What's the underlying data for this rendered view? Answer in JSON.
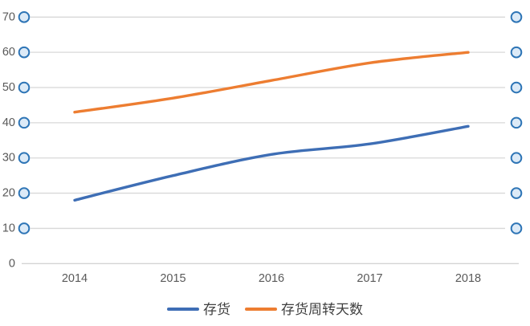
{
  "chart_data": {
    "type": "line",
    "title": "",
    "xlabel": "",
    "ylabel": "",
    "categories": [
      "2014",
      "2015",
      "2016",
      "2017",
      "2018"
    ],
    "series": [
      {
        "name": "存货",
        "color": "#3E6EB5",
        "values": [
          18,
          25,
          31,
          34,
          39
        ]
      },
      {
        "name": "存货周转天数",
        "color": "#ED7D31",
        "values": [
          43,
          47,
          52,
          57,
          60
        ]
      }
    ],
    "ylim": [
      0,
      70
    ],
    "ytick_step": 10,
    "ytick_labels": [
      "0",
      "10",
      "20",
      "30",
      "40",
      "50",
      "60",
      "70"
    ],
    "grid": true,
    "smooth": true,
    "legend_position": "bottom"
  },
  "style": {
    "background": "#ffffff",
    "grid_color": "#d8d8d8",
    "zero_line_color": "#d4d4d4",
    "tick_label_color": "#595959",
    "legend_text_color": "#3f3f3f",
    "axis_marker_ring_color": "#2E75B6",
    "axis_marker_fill_color": "#DCEAF7",
    "line_width": 3.4
  }
}
